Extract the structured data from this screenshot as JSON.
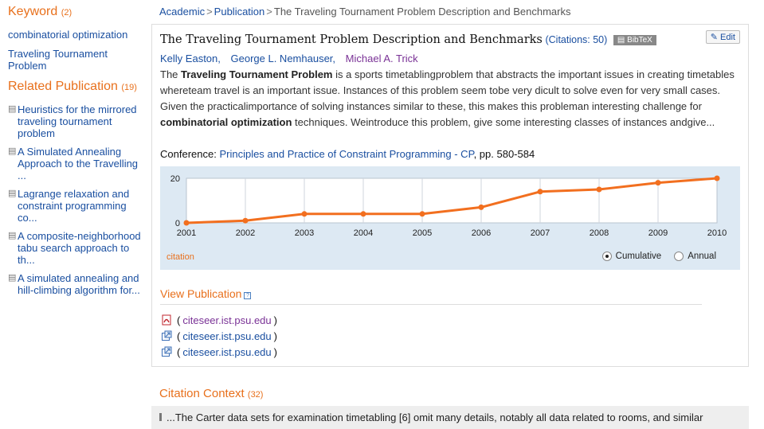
{
  "sidebar": {
    "keyword_heading": "Keyword",
    "keyword_count": "(2)",
    "keywords": [
      "combinatorial optimization",
      "Traveling Tournament Problem"
    ],
    "related_heading": "Related Publication",
    "related_count": "(19)",
    "related": [
      "Heuristics for the mirrored traveling tournament problem",
      "A Simulated Annealing Approach to the Travelling ...",
      "Lagrange relaxation and constraint programming co...",
      "A composite-neighborhood tabu search approach to th...",
      "A simulated annealing and hill-climbing algorithm for..."
    ]
  },
  "breadcrumb": {
    "items": [
      "Academic",
      "Publication"
    ],
    "current": "The Traveling Tournament Problem Description and Benchmarks",
    "sep": ">"
  },
  "publication": {
    "title": "The Traveling Tournament Problem Description and Benchmarks",
    "citations_label": "(Citations: 50)",
    "bibtex_label": "BibTeX",
    "edit_label": "Edit",
    "authors": [
      "Kelly Easton,",
      "George L. Nemhauser,",
      "Michael A. Trick"
    ],
    "abstract": {
      "p1": "The ",
      "b1": "Traveling Tournament Problem",
      "p2": " is a sports timetablingproblem that abstracts the important issues in creating timetables whereteam travel is an important issue. Instances of this problem seem tobe very dicult to solve even for very small cases. Given the practicalimportance of solving instances similar to these, this makes this probleman interesting challenge for ",
      "b2": "combinatorial optimization",
      "p3": " techniques. Weintroduce this problem, give some interesting classes of instances andgive..."
    },
    "conference_label": "Conference:",
    "conference_name": "Principles and Practice of Constraint Programming - CP",
    "conference_pages": ", pp. 580-584"
  },
  "chart_data": {
    "type": "line",
    "x": [
      2001,
      2002,
      2003,
      2004,
      2005,
      2006,
      2007,
      2008,
      2009,
      2010
    ],
    "series": [
      {
        "name": "citation",
        "values": [
          0,
          1,
          4,
          4,
          4,
          7,
          14,
          15,
          18,
          20
        ]
      }
    ],
    "yticks": [
      0,
      20
    ],
    "ylim": [
      0,
      20
    ],
    "grid": true,
    "line_color": "#f26f1f",
    "legend_label": "citation",
    "modes": [
      "Cumulative",
      "Annual"
    ],
    "selected_mode": "Cumulative"
  },
  "view_publication": {
    "heading": "View Publication",
    "help": "?",
    "links": [
      {
        "host": "citeseer.ist.psu.edu",
        "icon": "pdf-icon"
      },
      {
        "host": "citeseer.ist.psu.edu",
        "icon": "external-link-icon"
      },
      {
        "host": "citeseer.ist.psu.edu",
        "icon": "external-link-icon"
      }
    ]
  },
  "citation_context": {
    "heading": "Citation Context",
    "count": "(32)",
    "snippet": "...The Carter data sets for examination timetabling [6] omit many details, notably all data related to rooms, and similar"
  }
}
